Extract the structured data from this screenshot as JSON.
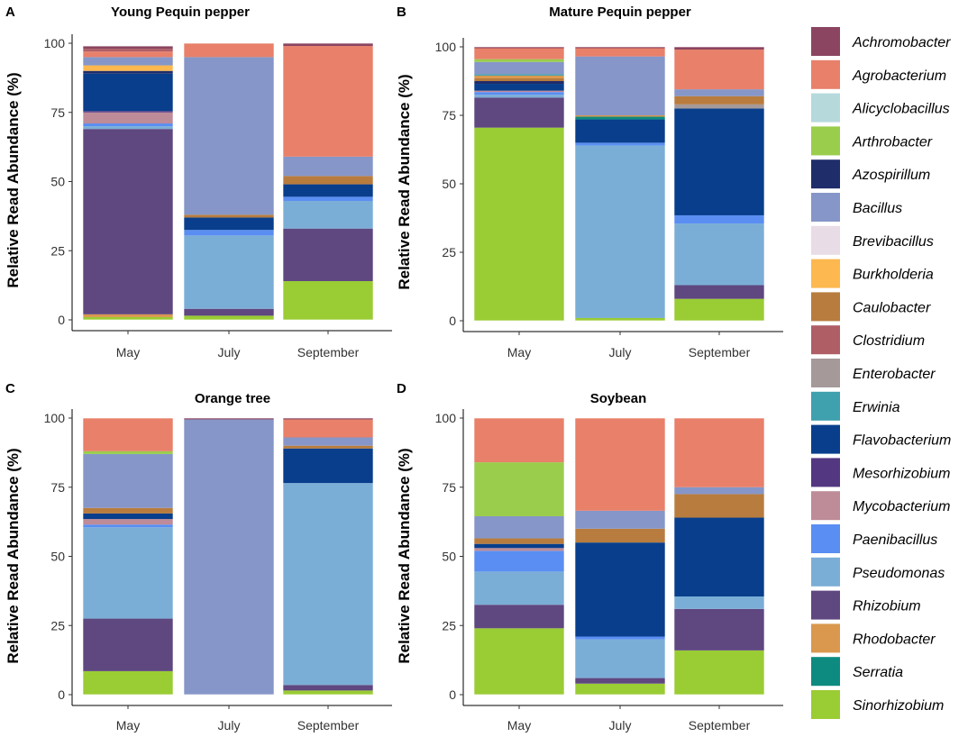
{
  "legend": {
    "items": [
      {
        "name": "Achromobacter",
        "color": "#8B4560"
      },
      {
        "name": "Agrobacterium",
        "color": "#E8806A"
      },
      {
        "name": "Alicyclobacillus",
        "color": "#B6D9DC"
      },
      {
        "name": "Arthrobacter",
        "color": "#9ACD4C"
      },
      {
        "name": "Azospirillum",
        "color": "#1F2D6B"
      },
      {
        "name": "Bacillus",
        "color": "#8696C8"
      },
      {
        "name": "Brevibacillus",
        "color": "#E8DCE6"
      },
      {
        "name": "Burkholderia",
        "color": "#FDB84F"
      },
      {
        "name": "Caulobacter",
        "color": "#B87C3E"
      },
      {
        "name": "Clostridium",
        "color": "#B05E66"
      },
      {
        "name": "Enterobacter",
        "color": "#A59999"
      },
      {
        "name": "Erwinia",
        "color": "#3FA0AE"
      },
      {
        "name": "Flavobacterium",
        "color": "#083E8C"
      },
      {
        "name": "Mesorhizobium",
        "color": "#533781"
      },
      {
        "name": "Mycobacterium",
        "color": "#BE8B98"
      },
      {
        "name": "Paenibacillus",
        "color": "#5A8EF2"
      },
      {
        "name": "Pseudomonas",
        "color": "#7BAED6"
      },
      {
        "name": "Rhizobium",
        "color": "#5F4780"
      },
      {
        "name": "Rhodobacter",
        "color": "#D9984E"
      },
      {
        "name": "Serratia",
        "color": "#0D8B80"
      },
      {
        "name": "Sinorhizobium",
        "color": "#9ACC34"
      }
    ]
  },
  "chart_data": [
    {
      "type": "bar",
      "stacked": true,
      "letter": "A",
      "title": "Young Pequin pepper",
      "ylabel": "Relative Read Abundance (%)",
      "xlabel": "",
      "ylim": [
        0,
        100
      ],
      "yticks": [
        0,
        25,
        50,
        75,
        100
      ],
      "categories": [
        "May",
        "July",
        "September"
      ],
      "stacks": [
        [
          [
            "Sinorhizobium",
            1
          ],
          [
            "Rhodobacter",
            1
          ],
          [
            "Rhizobium",
            67
          ],
          [
            "Pseudomonas",
            1
          ],
          [
            "Paenibacillus",
            1
          ],
          [
            "Mycobacterium",
            4
          ],
          [
            "Mesorhizobium",
            0.5
          ],
          [
            "Flavobacterium",
            13.5
          ],
          [
            "Azospirillum",
            1
          ],
          [
            "Burkholderia",
            2
          ],
          [
            "Bacillus",
            3
          ],
          [
            "Agrobacterium",
            2
          ],
          [
            "Clostridium",
            1
          ],
          [
            "Achromobacter",
            1
          ]
        ],
        [
          [
            "Sinorhizobium",
            1.5
          ],
          [
            "Rhizobium",
            2.5
          ],
          [
            "Pseudomonas",
            26.5
          ],
          [
            "Paenibacillus",
            2
          ],
          [
            "Flavobacterium",
            4.5
          ],
          [
            "Caulobacter",
            1
          ],
          [
            "Bacillus",
            57
          ],
          [
            "Agrobacterium",
            5
          ]
        ],
        [
          [
            "Sinorhizobium",
            14
          ],
          [
            "Rhizobium",
            19
          ],
          [
            "Pseudomonas",
            10
          ],
          [
            "Paenibacillus",
            1.5
          ],
          [
            "Flavobacterium",
            4.5
          ],
          [
            "Caulobacter",
            3
          ],
          [
            "Bacillus",
            7
          ],
          [
            "Agrobacterium",
            40
          ],
          [
            "Achromobacter",
            1
          ]
        ]
      ]
    },
    {
      "type": "bar",
      "stacked": true,
      "letter": "B",
      "title": "Mature Pequin pepper",
      "ylabel": "Relative Read Abundance (%)",
      "xlabel": "",
      "ylim": [
        0,
        100
      ],
      "yticks": [
        0,
        25,
        50,
        75,
        100
      ],
      "categories": [
        "May",
        "July",
        "September"
      ],
      "stacks": [
        [
          [
            "Sinorhizobium",
            70.5
          ],
          [
            "Rhizobium",
            11
          ],
          [
            "Pseudomonas",
            1
          ],
          [
            "Paenibacillus",
            1
          ],
          [
            "Mycobacterium",
            0.5
          ],
          [
            "Flavobacterium",
            2.5
          ],
          [
            "Azospirillum",
            1
          ],
          [
            "Caulobacter",
            1
          ],
          [
            "Rhodobacter",
            1
          ],
          [
            "Erwinia",
            0.5
          ],
          [
            "Bacillus",
            4.5
          ],
          [
            "Arthrobacter",
            1
          ],
          [
            "Agrobacterium",
            4
          ],
          [
            "Achromobacter",
            0.5
          ]
        ],
        [
          [
            "Sinorhizobium",
            1
          ],
          [
            "Pseudomonas",
            63
          ],
          [
            "Paenibacillus",
            1
          ],
          [
            "Flavobacterium",
            8.5
          ],
          [
            "Serratia",
            1
          ],
          [
            "Rhodobacter",
            0.5
          ],
          [
            "Bacillus",
            21.5
          ],
          [
            "Agrobacterium",
            3
          ],
          [
            "Achromobacter",
            0.5
          ]
        ],
        [
          [
            "Sinorhizobium",
            8
          ],
          [
            "Rhizobium",
            5
          ],
          [
            "Pseudomonas",
            22.5
          ],
          [
            "Paenibacillus",
            3
          ],
          [
            "Flavobacterium",
            39
          ],
          [
            "Enterobacter",
            1.5
          ],
          [
            "Caulobacter",
            3
          ],
          [
            "Bacillus",
            2.5
          ],
          [
            "Agrobacterium",
            14.5
          ],
          [
            "Achromobacter",
            1
          ]
        ]
      ]
    },
    {
      "type": "bar",
      "stacked": true,
      "letter": "C",
      "title": "Orange tree",
      "ylabel": "Relative Read Abundance (%)",
      "xlabel": "",
      "ylim": [
        0,
        100
      ],
      "yticks": [
        0,
        25,
        50,
        75,
        100
      ],
      "categories": [
        "May",
        "July",
        "September"
      ],
      "stacks": [
        [
          [
            "Sinorhizobium",
            8.5
          ],
          [
            "Rhizobium",
            19
          ],
          [
            "Pseudomonas",
            33
          ],
          [
            "Paenibacillus",
            1
          ],
          [
            "Mycobacterium",
            2
          ],
          [
            "Flavobacterium",
            2
          ],
          [
            "Caulobacter",
            2
          ],
          [
            "Bacillus",
            19.5
          ],
          [
            "Arthrobacter",
            1
          ],
          [
            "Agrobacterium",
            12
          ]
        ],
        [
          [
            "Bacillus",
            99.5
          ],
          [
            "Achromobacter",
            0.5
          ]
        ],
        [
          [
            "Sinorhizobium",
            1.5
          ],
          [
            "Rhizobium",
            2
          ],
          [
            "Pseudomonas",
            73
          ],
          [
            "Flavobacterium",
            12.5
          ],
          [
            "Caulobacter",
            1
          ],
          [
            "Bacillus",
            3
          ],
          [
            "Agrobacterium",
            6.5
          ],
          [
            "Achromobacter",
            0.5
          ]
        ]
      ]
    },
    {
      "type": "bar",
      "stacked": true,
      "letter": "D",
      "title": "Soybean",
      "ylabel": "Relative Read Abundance (%)",
      "xlabel": "",
      "ylim": [
        0,
        100
      ],
      "yticks": [
        0,
        25,
        50,
        75,
        100
      ],
      "categories": [
        "May",
        "July",
        "September"
      ],
      "stacks": [
        [
          [
            "Sinorhizobium",
            24
          ],
          [
            "Rhizobium",
            8.5
          ],
          [
            "Pseudomonas",
            12
          ],
          [
            "Paenibacillus",
            7.5
          ],
          [
            "Mycobacterium",
            1
          ],
          [
            "Flavobacterium",
            1.5
          ],
          [
            "Caulobacter",
            2
          ],
          [
            "Bacillus",
            8
          ],
          [
            "Arthrobacter",
            19.5
          ],
          [
            "Agrobacterium",
            16
          ]
        ],
        [
          [
            "Sinorhizobium",
            4
          ],
          [
            "Rhizobium",
            2
          ],
          [
            "Pseudomonas",
            14
          ],
          [
            "Paenibacillus",
            1
          ],
          [
            "Flavobacterium",
            34
          ],
          [
            "Caulobacter",
            5
          ],
          [
            "Bacillus",
            6.5
          ],
          [
            "Agrobacterium",
            33.5
          ]
        ],
        [
          [
            "Sinorhizobium",
            16
          ],
          [
            "Rhizobium",
            15
          ],
          [
            "Pseudomonas",
            4.5
          ],
          [
            "Flavobacterium",
            28.5
          ],
          [
            "Caulobacter",
            8.5
          ],
          [
            "Bacillus",
            2.5
          ],
          [
            "Agrobacterium",
            25
          ]
        ]
      ]
    }
  ]
}
